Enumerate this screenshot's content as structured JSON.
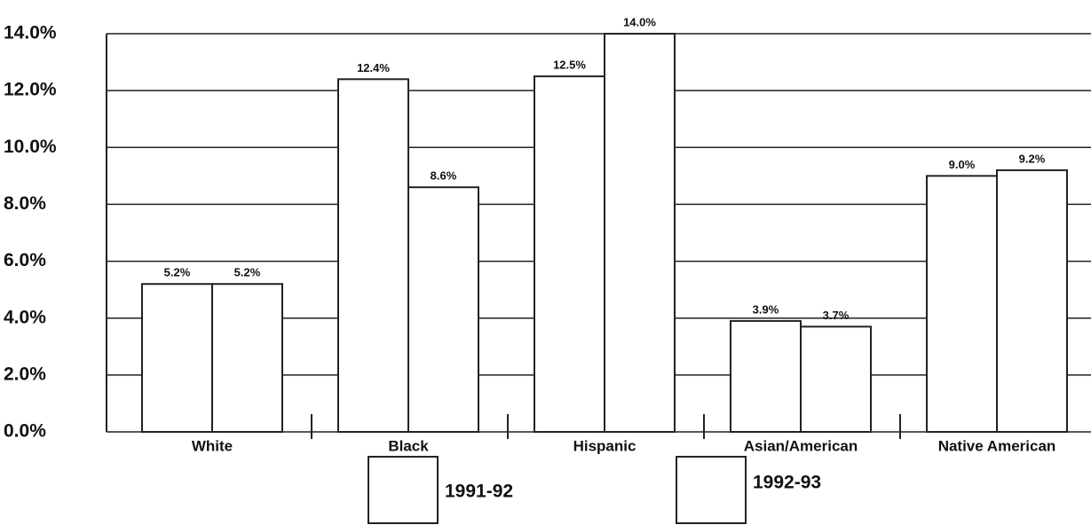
{
  "chart_data": {
    "type": "bar",
    "categories": [
      "White",
      "Black",
      "Hispanic",
      "Asian/American",
      "Native American"
    ],
    "series": [
      {
        "name": "1991-92",
        "color": "#ffffff",
        "values": [
          5.2,
          12.4,
          12.5,
          3.9,
          9.0
        ],
        "value_labels": [
          "5.2%",
          "12.4%",
          "12.5%",
          "3.9%",
          "9.0%"
        ]
      },
      {
        "name": "1992-93",
        "color": "#ffffff",
        "values": [
          5.2,
          8.6,
          14.0,
          3.7,
          9.2
        ],
        "value_labels": [
          "5.2%",
          "8.6%",
          "14.0%",
          "3.7%",
          "9.2%"
        ]
      }
    ],
    "ylim": [
      0,
      14
    ],
    "yticks": [
      {
        "value": 0,
        "label": "0.0%"
      },
      {
        "value": 2,
        "label": "2.0%"
      },
      {
        "value": 4,
        "label": "4.0%"
      },
      {
        "value": 6,
        "label": "6.0%"
      },
      {
        "value": 8,
        "label": "8.0%"
      },
      {
        "value": 10,
        "label": "10.0%"
      },
      {
        "value": 12,
        "label": "12.0%"
      },
      {
        "value": 14,
        "label": "14.0%"
      }
    ],
    "grid": true
  }
}
